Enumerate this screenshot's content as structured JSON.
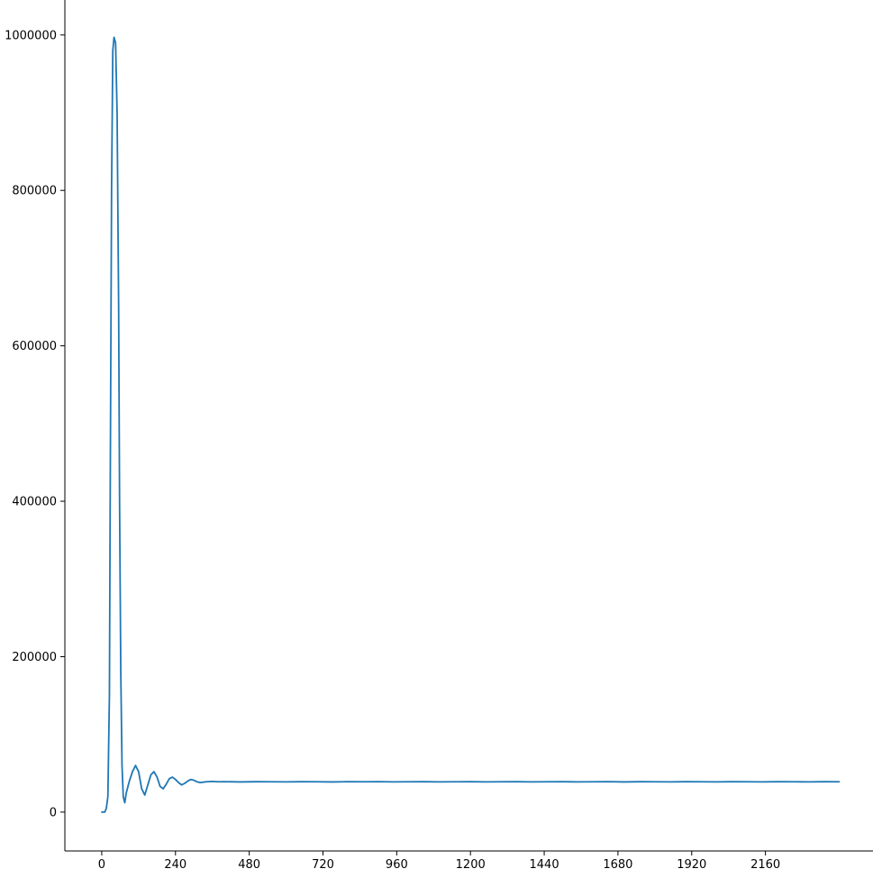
{
  "chart_data": {
    "type": "line",
    "title": "",
    "xlabel": "",
    "ylabel": "",
    "xlim": [
      -120,
      2510
    ],
    "ylim": [
      -50000,
      1045000
    ],
    "xticks": [
      0,
      240,
      480,
      720,
      960,
      1200,
      1440,
      1680,
      1920,
      2160
    ],
    "xtick_labels": [
      "0",
      "240",
      "480",
      "720",
      "960",
      "1200",
      "1440",
      "1680",
      "1920",
      "2160"
    ],
    "yticks": [
      0,
      200000,
      400000,
      600000,
      800000,
      1000000
    ],
    "ytick_labels": [
      "0",
      "200000",
      "400000",
      "600000",
      "800000",
      "1000000"
    ],
    "grid": false,
    "series": [
      {
        "color": "#1f77b4",
        "x": [
          0,
          10,
          15,
          20,
          25,
          28,
          32,
          36,
          40,
          45,
          50,
          55,
          58,
          62,
          66,
          70,
          75,
          80,
          90,
          100,
          110,
          120,
          130,
          140,
          150,
          160,
          170,
          180,
          190,
          200,
          210,
          220,
          230,
          240,
          250,
          260,
          270,
          280,
          290,
          300,
          310,
          320,
          330,
          340,
          360,
          380,
          400,
          450,
          500,
          550,
          600,
          650,
          700,
          750,
          800,
          850,
          900,
          950,
          1000,
          1050,
          1100,
          1150,
          1200,
          1250,
          1300,
          1350,
          1400,
          1450,
          1500,
          1550,
          1600,
          1650,
          1700,
          1750,
          1800,
          1850,
          1900,
          1950,
          2000,
          2050,
          2100,
          2150,
          2200,
          2250,
          2300,
          2350,
          2400
        ],
        "y": [
          0,
          0,
          5000,
          20000,
          150000,
          450000,
          800000,
          980000,
          997000,
          990000,
          900000,
          650000,
          400000,
          180000,
          60000,
          20000,
          12000,
          25000,
          40000,
          52000,
          60000,
          52000,
          30000,
          22000,
          35000,
          48000,
          52000,
          45000,
          33000,
          30000,
          36000,
          43000,
          45000,
          42000,
          38000,
          35000,
          37000,
          40000,
          42000,
          41000,
          39000,
          38000,
          38500,
          39000,
          39500,
          39000,
          39200,
          38800,
          39100,
          39000,
          38900,
          39100,
          39000,
          38800,
          39100,
          39000,
          39200,
          38900,
          39000,
          39100,
          38900,
          39000,
          39100,
          38900,
          39000,
          39100,
          38900,
          39000,
          39100,
          38900,
          39000,
          39200,
          38800,
          39100,
          39000,
          38900,
          39100,
          39000,
          38900,
          39100,
          39000,
          38900,
          39100,
          39000,
          38900,
          39100,
          39000
        ]
      }
    ]
  }
}
